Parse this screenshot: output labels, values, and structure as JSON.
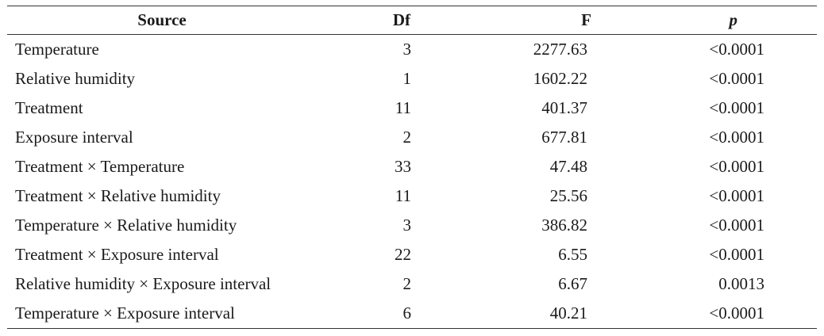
{
  "chart_data": {
    "type": "table",
    "columns": [
      "Source",
      "Df",
      "F",
      "p"
    ],
    "rows": [
      {
        "source": "Temperature",
        "df": "3",
        "f": "2277.63",
        "p": "<0.0001"
      },
      {
        "source": "Relative humidity",
        "df": "1",
        "f": "1602.22",
        "p": "<0.0001"
      },
      {
        "source": "Treatment",
        "df": "11",
        "f": "401.37",
        "p": "<0.0001"
      },
      {
        "source": "Exposure interval",
        "df": "2",
        "f": "677.81",
        "p": "<0.0001"
      },
      {
        "source": "Treatment × Temperature",
        "df": "33",
        "f": "47.48",
        "p": "<0.0001"
      },
      {
        "source": "Treatment × Relative humidity",
        "df": "11",
        "f": "25.56",
        "p": "<0.0001"
      },
      {
        "source": "Temperature × Relative humidity",
        "df": "3",
        "f": "386.82",
        "p": "<0.0001"
      },
      {
        "source": "Treatment × Exposure interval",
        "df": "22",
        "f": "6.55",
        "p": "<0.0001"
      },
      {
        "source": "Relative humidity × Exposure interval",
        "df": "2",
        "f": "6.67",
        "p": "0.0013"
      },
      {
        "source": "Temperature × Exposure interval",
        "df": "6",
        "f": "40.21",
        "p": "<0.0001"
      }
    ]
  }
}
